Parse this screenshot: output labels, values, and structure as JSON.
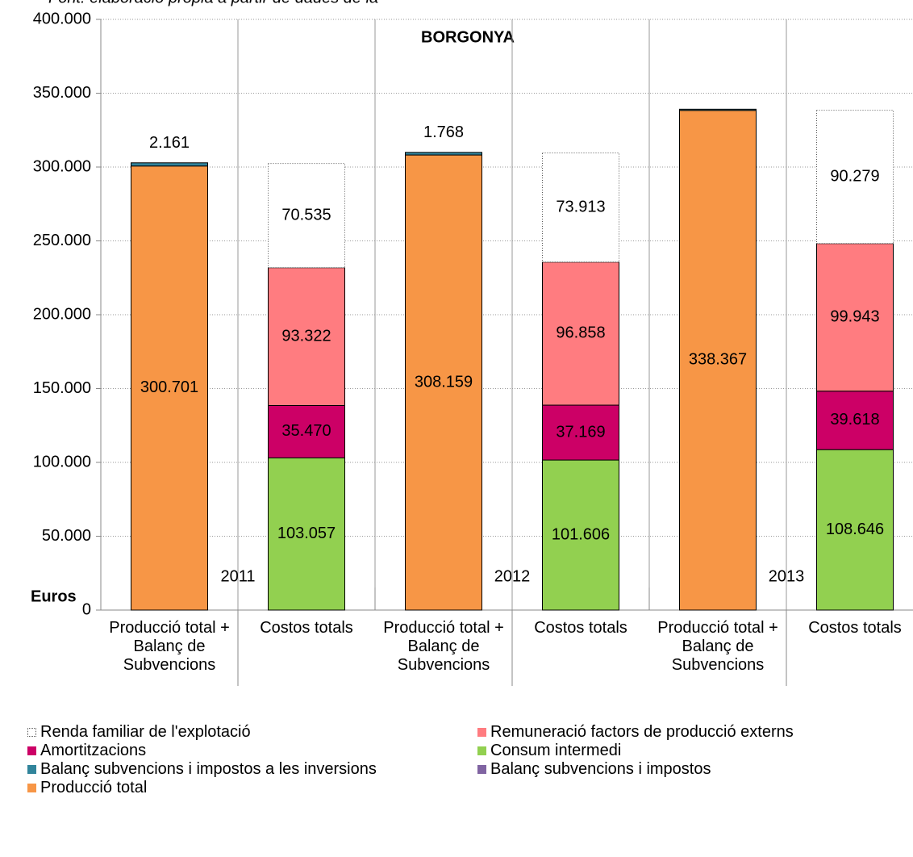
{
  "chart_data": {
    "type": "stacked_bar",
    "title": "BORGONYA",
    "source": "Font: elaboració pròpia a partir de dades de la",
    "y_axis_label": "Euros",
    "categories": [
      "Producció total + Balanç de Subvencions",
      "Costos totals",
      "Producció total + Balanç de Subvencions",
      "Costos totals",
      "Producció total + Balanç de Subvencions",
      "Costos totals"
    ],
    "groups": [
      "2011",
      "2012",
      "2013"
    ],
    "ylim": [
      0,
      400000
    ],
    "yticks": [
      0,
      {
        "value": 50000,
        "label": "50.000"
      },
      {
        "value": 100000,
        "label": "100.000"
      },
      {
        "value": 150000,
        "label": "150.000"
      },
      {
        "value": 200000,
        "label": "200.000"
      },
      {
        "value": 250000,
        "label": "250.000"
      },
      {
        "value": 300000,
        "label": "300.000"
      },
      {
        "value": 350000,
        "label": "350.000"
      },
      {
        "value": 400000,
        "label": "400.000"
      }
    ],
    "grid": true,
    "series": [
      {
        "name": "Renda familiar de l'explotació",
        "color": "#ffffff",
        "label_color": "#000000",
        "values": [
          null,
          70535,
          null,
          73913,
          null,
          90279
        ],
        "value_labels": [
          null,
          "70.535",
          null,
          "73.913",
          null,
          "90.279"
        ]
      },
      {
        "name": "Remuneració factors de producció externs",
        "color": "#ff7c80",
        "label_color": "#000000",
        "values": [
          null,
          93322,
          null,
          96858,
          null,
          99943
        ],
        "value_labels": [
          null,
          "93.322",
          null,
          "96.858",
          null,
          "99.943"
        ]
      },
      {
        "name": "Amortitzacions",
        "color": "#cc0066",
        "label_color": "#ffffff",
        "values": [
          null,
          35470,
          null,
          37169,
          null,
          39618
        ],
        "value_labels": [
          null,
          "35.470",
          null,
          "37.169",
          null,
          "39.618"
        ]
      },
      {
        "name": "Consum intermedi",
        "color": "#92d050",
        "label_color": "#000000",
        "values": [
          null,
          103057,
          null,
          101606,
          null,
          108646
        ],
        "value_labels": [
          null,
          "103.057",
          null,
          "101.606",
          null,
          "108.646"
        ]
      },
      {
        "name": "Balanç subvencions i impostos a les inversions",
        "color": "#31849b",
        "label_color": "#000000",
        "values": [
          2161,
          null,
          1768,
          null,
          800,
          null
        ],
        "value_labels": [
          "2.161",
          null,
          "1.768",
          null,
          null,
          null
        ]
      },
      {
        "name": "Balanç subvencions i impostos",
        "color": "#8064a2",
        "label_color": "#000000",
        "values": [
          null,
          null,
          null,
          null,
          null,
          null
        ],
        "value_labels": [
          null,
          null,
          null,
          null,
          null,
          null
        ]
      },
      {
        "name": "Producció total",
        "color": "#f79646",
        "label_color": "#000000",
        "values": [
          300701,
          null,
          308159,
          null,
          338367,
          null
        ],
        "value_labels": [
          "300.701",
          null,
          "308.159",
          null,
          "338.367",
          null
        ]
      }
    ]
  }
}
